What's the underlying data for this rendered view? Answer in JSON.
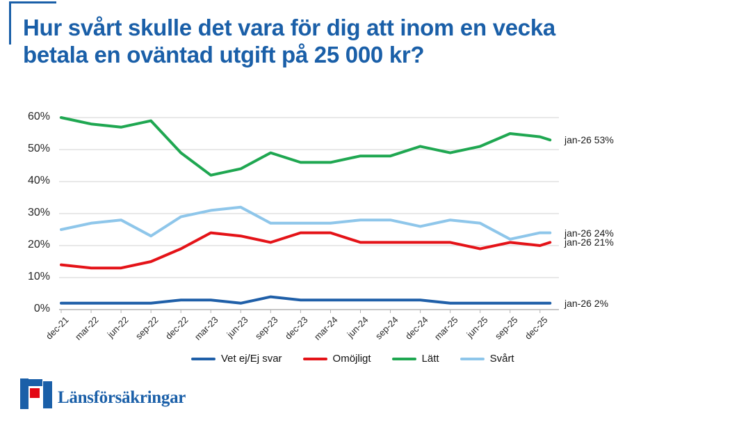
{
  "brand_color": "#1a5fa8",
  "title": {
    "line1": "Hur svårt skulle det vara för dig att inom en vecka",
    "line2": "betala en oväntad utgift på 25 000 kr?"
  },
  "logo": {
    "wordmark": "Länsförsäkringar",
    "symbol_blue": "#1a5fa8",
    "symbol_red": "#e30613"
  },
  "chart_data": {
    "type": "line",
    "title": "",
    "xlabel": "",
    "ylabel": "",
    "categories": [
      "dec-21",
      "mar-22",
      "jun-22",
      "sep-22",
      "dec-22",
      "mar-23",
      "jun-23",
      "sep-23",
      "dec-23",
      "mar-24",
      "jun-24",
      "sep-24",
      "dec-24",
      "mar-25",
      "jun-25",
      "sep-25",
      "dec-25"
    ],
    "final_point_label": "jan-26",
    "yticks": [
      "0%",
      "10%",
      "20%",
      "30%",
      "40%",
      "50%",
      "60%"
    ],
    "ylim": [
      0,
      60
    ],
    "grid": true,
    "gridline_color": "#d9d9d9",
    "axis_color": "#b3b3b3",
    "legend_position": "bottom",
    "series": [
      {
        "name": "Vet ej/Ej svar",
        "color": "#1f5fa8",
        "values": [
          2,
          2,
          2,
          2,
          3,
          3,
          2,
          4,
          3,
          3,
          3,
          3,
          3,
          2,
          2,
          2,
          2,
          2
        ],
        "end_label": "jan-26 2%"
      },
      {
        "name": "Omöjligt",
        "color": "#e41318",
        "values": [
          14,
          13,
          13,
          15,
          19,
          24,
          23,
          21,
          24,
          24,
          21,
          21,
          21,
          21,
          19,
          21,
          20,
          21
        ],
        "end_label": "jan-26 21%"
      },
      {
        "name": "Lätt",
        "color": "#1fa751",
        "values": [
          60,
          58,
          57,
          59,
          49,
          42,
          44,
          49,
          46,
          46,
          48,
          48,
          51,
          49,
          51,
          55,
          54,
          53
        ],
        "end_label": "jan-26 53%"
      },
      {
        "name": "Svårt",
        "color": "#8ec6ea",
        "values": [
          25,
          27,
          28,
          23,
          29,
          31,
          32,
          27,
          27,
          27,
          28,
          28,
          26,
          28,
          27,
          22,
          24,
          24
        ],
        "end_label": "jan-26 24%"
      }
    ]
  }
}
